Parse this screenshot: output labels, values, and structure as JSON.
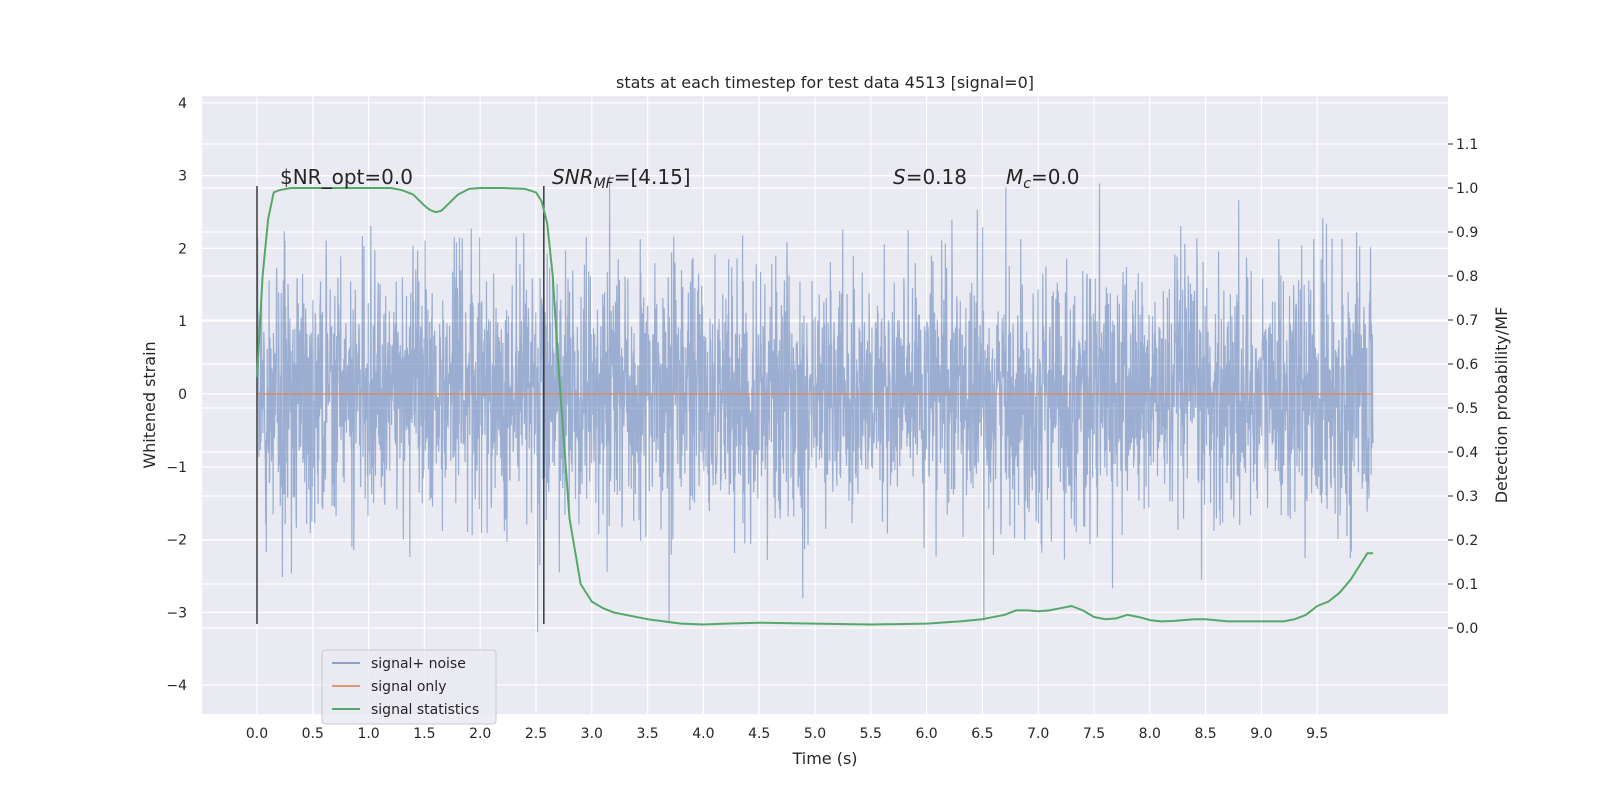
{
  "chart_data": {
    "type": "line",
    "title": "stats at each timestep for test data 4513 [signal=0]",
    "xlabel": "Time (s)",
    "ylabel": "Whitened strain",
    "ylabel_right": "Detection probability/MF",
    "xlim": [
      -0.5,
      10.5
    ],
    "ylim": [
      -4.4,
      4.1
    ],
    "ylim_right": [
      -0.2,
      1.2
    ],
    "x_ticks": [
      "0.0",
      "0.5",
      "1.0",
      "1.5",
      "2.0",
      "2.5",
      "3.0",
      "3.5",
      "4.0",
      "4.5",
      "5.0",
      "5.5",
      "6.0",
      "6.5",
      "7.0",
      "7.5",
      "8.0",
      "8.5",
      "9.0",
      "9.5"
    ],
    "y_ticks": [
      "4",
      "3",
      "2",
      "1",
      "0",
      "−1",
      "−2",
      "−3",
      "−4"
    ],
    "y_ticks_right": [
      "1.1",
      "1.0",
      "0.9",
      "0.8",
      "0.7",
      "0.6",
      "0.5",
      "0.4",
      "0.3",
      "0.2",
      "0.1",
      "0.0"
    ],
    "grid": true,
    "annotations": {
      "snr_opt": "$NR_opt=0.0",
      "snr_mf_base": "SNR",
      "snr_mf_sub": "MF",
      "snr_mf_value": "=[4.15]",
      "s_base": "S",
      "s_value": "=0.18",
      "mc_base": "M",
      "mc_sub": "c",
      "mc_value": "=0.0"
    },
    "vertical_lines_x": [
      0.0,
      2.57
    ],
    "legend_placement": "lower-left",
    "series": [
      {
        "name": "signal+ noise",
        "color": "#4c72b0",
        "noise_std": 0.85,
        "x_range": [
          0,
          10
        ]
      },
      {
        "name": "signal only",
        "color": "#dd8452",
        "value": 0.0,
        "x_range": [
          0,
          10
        ]
      },
      {
        "name": "signal statistics",
        "color": "#55a868",
        "x": [
          0.0,
          0.05,
          0.1,
          0.15,
          0.2,
          0.3,
          0.5,
          0.8,
          1.0,
          1.2,
          1.3,
          1.4,
          1.5,
          1.55,
          1.6,
          1.65,
          1.7,
          1.8,
          1.9,
          2.0,
          2.2,
          2.4,
          2.5,
          2.55,
          2.6,
          2.65,
          2.7,
          2.8,
          2.9,
          3.0,
          3.1,
          3.2,
          3.5,
          3.8,
          4.0,
          4.2,
          4.5,
          5.0,
          5.5,
          6.0,
          6.3,
          6.5,
          6.7,
          6.8,
          6.9,
          7.0,
          7.1,
          7.2,
          7.3,
          7.4,
          7.5,
          7.6,
          7.7,
          7.8,
          7.9,
          8.0,
          8.1,
          8.2,
          8.3,
          8.4,
          8.5,
          8.7,
          9.0,
          9.2,
          9.3,
          9.4,
          9.5,
          9.6,
          9.7,
          9.8,
          9.9,
          9.95,
          10.0
        ],
        "y": [
          0.57,
          0.8,
          0.93,
          0.99,
          0.995,
          1.0,
          1.0,
          1.0,
          1.0,
          1.0,
          0.995,
          0.985,
          0.96,
          0.95,
          0.945,
          0.948,
          0.96,
          0.985,
          0.998,
          1.0,
          1.0,
          0.998,
          0.99,
          0.97,
          0.92,
          0.8,
          0.6,
          0.25,
          0.1,
          0.06,
          0.045,
          0.035,
          0.02,
          0.01,
          0.008,
          0.01,
          0.012,
          0.01,
          0.008,
          0.01,
          0.015,
          0.02,
          0.03,
          0.04,
          0.04,
          0.038,
          0.04,
          0.045,
          0.05,
          0.04,
          0.025,
          0.02,
          0.022,
          0.03,
          0.025,
          0.018,
          0.015,
          0.016,
          0.018,
          0.02,
          0.02,
          0.015,
          0.015,
          0.015,
          0.02,
          0.03,
          0.05,
          0.06,
          0.08,
          0.11,
          0.15,
          0.17,
          0.17
        ]
      }
    ]
  }
}
